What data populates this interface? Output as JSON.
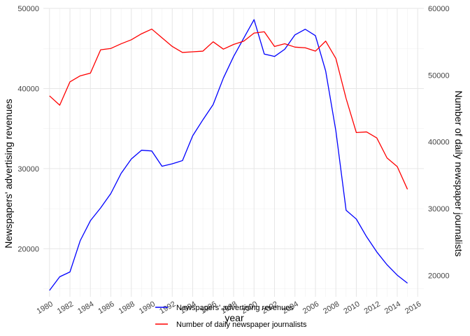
{
  "chart_data": {
    "type": "line",
    "xlabel": "year",
    "ylabel_left": "Newspapers' advertising revenues",
    "ylabel_right": "Number of daily newspaper journalists",
    "xlim": [
      1979.4,
      2016.6
    ],
    "x_ticks": [
      1980,
      1982,
      1984,
      1986,
      1988,
      1990,
      1992,
      1994,
      1996,
      1998,
      2000,
      2002,
      2004,
      2006,
      2008,
      2010,
      2012,
      2014,
      2016
    ],
    "ylim_left": [
      14000,
      50000
    ],
    "y_ticks_left": [
      20000,
      30000,
      40000,
      50000
    ],
    "ylim_right": [
      16800,
      60000
    ],
    "y_ticks_right": [
      20000,
      30000,
      40000,
      50000,
      60000
    ],
    "grid": true,
    "legend_position": "bottom-center",
    "series": [
      {
        "name": "Newspapers' advertising revenues",
        "axis": "left",
        "color": "#0000ff",
        "x": [
          1980,
          1981,
          1982,
          1983,
          1984,
          1985,
          1986,
          1987,
          1988,
          1989,
          1990,
          1991,
          1992,
          1993,
          1994,
          1995,
          1996,
          1997,
          1998,
          1999,
          2000,
          2001,
          2002,
          2003,
          2004,
          2005,
          2006,
          2007,
          2008,
          2009,
          2010,
          2011,
          2012,
          2013,
          2014,
          2015
        ],
        "values": [
          14800,
          16500,
          17100,
          21000,
          23500,
          25100,
          26900,
          29400,
          31200,
          32300,
          32200,
          30300,
          30600,
          31000,
          34100,
          36100,
          38000,
          41300,
          44000,
          46300,
          48600,
          44300,
          44000,
          44900,
          46700,
          47400,
          46600,
          42200,
          34700,
          24800,
          23700,
          21500,
          19600,
          18000,
          16700,
          15700
        ]
      },
      {
        "name": "Number of daily newspaper journalists",
        "axis": "right",
        "color": "#ff0000",
        "x": [
          1980,
          1981,
          1982,
          1983,
          1984,
          1985,
          1986,
          1987,
          1988,
          1989,
          1990,
          1991,
          1992,
          1993,
          1994,
          1995,
          1996,
          1997,
          1998,
          1999,
          2000,
          2001,
          2002,
          2003,
          2004,
          2005,
          2006,
          2007,
          2008,
          2009,
          2010,
          2011,
          2012,
          2013,
          2014,
          2015
        ],
        "values": [
          46900,
          45500,
          49000,
          49900,
          50300,
          53800,
          54000,
          54700,
          55300,
          56200,
          56900,
          55600,
          54300,
          53400,
          53500,
          53600,
          55000,
          53900,
          54600,
          55100,
          56300,
          56500,
          54300,
          54700,
          54200,
          54100,
          53600,
          55100,
          52500,
          46500,
          41400,
          41500,
          40600,
          37600,
          36300,
          32900
        ]
      }
    ]
  }
}
